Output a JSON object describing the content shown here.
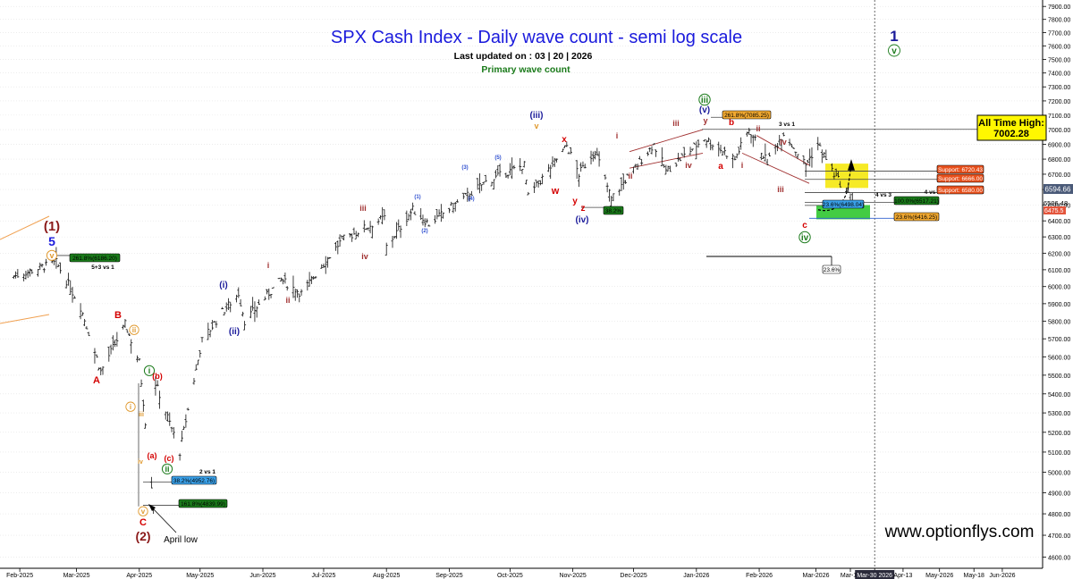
{
  "header": {
    "title": "SPX Cash Index - Daily wave count - semi log scale",
    "updated": "Last updated on : 03 | 20 | 2026",
    "subtitle": "Primary wave count",
    "watermark": "www.optionflys.com"
  },
  "colors": {
    "title": "#1a1adc",
    "green": "#1a7a1a",
    "red": "#d40000",
    "darkred": "#8b1a1a",
    "orange": "#e09a30",
    "blue": "#1a1a9a",
    "yellowZone": "#f5e600",
    "greenZone": "#22c322",
    "supportLabel": "#e8501c"
  },
  "chart_data": {
    "type": "ohlc",
    "scale": "log",
    "ylim": [
      4550,
      7950
    ],
    "y_ticks": [
      4600,
      4700,
      4800,
      4900,
      5000,
      5100,
      5200,
      5300,
      5400,
      5500,
      5600,
      5700,
      5800,
      5900,
      6000,
      6100,
      6200,
      6300,
      6400,
      6500,
      6600,
      6700,
      6800,
      6900,
      7000,
      7100,
      7200,
      7300,
      7400,
      7500,
      7600,
      7700,
      7800,
      7900
    ],
    "x_ticks": [
      "Feb-2025",
      "Mar-2025",
      "Apr-2025",
      "May-2025",
      "Jun-2025",
      "Jul-2025",
      "Aug-2025",
      "Sep-2025",
      "Oct-2025",
      "Nov-2025",
      "Dec-2025",
      "Jan-2026",
      "Feb-2026",
      "Mar-2026",
      "Mar-18",
      "Mar-30 2026",
      "Apr-13",
      "May-2026",
      "May-18",
      "Jun-2026"
    ],
    "price_path": [
      [
        "2025-01-29",
        6060
      ],
      [
        "2025-02-19",
        6144
      ],
      [
        "2025-03-03",
        5880
      ],
      [
        "2025-03-13",
        5520
      ],
      [
        "2025-03-25",
        5780
      ],
      [
        "2025-04-01",
        5570
      ],
      [
        "2025-04-08",
        4835
      ],
      [
        "2025-04-09",
        5456
      ],
      [
        "2025-04-21",
        5100
      ],
      [
        "2025-05-02",
        5690
      ],
      [
        "2025-05-12",
        5850
      ],
      [
        "2025-05-20",
        5960
      ],
      [
        "2025-05-23",
        5800
      ],
      [
        "2025-06-10",
        6040
      ],
      [
        "2025-06-20",
        5960
      ],
      [
        "2025-07-10",
        6280
      ],
      [
        "2025-07-31",
        6420
      ],
      [
        "2025-08-01",
        6240
      ],
      [
        "2025-08-14",
        6470
      ],
      [
        "2025-08-22",
        6380
      ],
      [
        "2025-09-19",
        6650
      ],
      [
        "2025-10-08",
        6760
      ],
      [
        "2025-10-10",
        6550
      ],
      [
        "2025-10-29",
        6890
      ],
      [
        "2025-11-04",
        6700
      ],
      [
        "2025-11-12",
        6860
      ],
      [
        "2025-11-20",
        6540
      ],
      [
        "2025-12-11",
        6900
      ],
      [
        "2025-12-17",
        6720
      ],
      [
        "2026-01-05",
        6940
      ],
      [
        "2026-01-20",
        6800
      ],
      [
        "2026-01-27",
        7002
      ],
      [
        "2026-02-05",
        6780
      ],
      [
        "2026-02-13",
        6980
      ],
      [
        "2026-02-24",
        6760
      ],
      [
        "2026-03-02",
        6900
      ],
      [
        "2026-03-10",
        6700
      ],
      [
        "2026-03-20",
        6506
      ]
    ],
    "last_price": "6594.66",
    "price_tags": [
      "6506.48",
      "6475.5"
    ],
    "wave_labels": [
      {
        "text": "(1)",
        "color": "#8b1a1a"
      },
      {
        "text": "5",
        "color": "#1a1adc"
      },
      {
        "text": "v",
        "color": "#e09a30"
      },
      {
        "text": "A",
        "color": "#d40000"
      },
      {
        "text": "B",
        "color": "#d40000"
      },
      {
        "text": "C",
        "color": "#d40000"
      },
      {
        "text": "(2)",
        "color": "#8b1a1a"
      },
      {
        "text": "i",
        "color": "#1a7a1a"
      },
      {
        "text": "ii",
        "color": "#1a7a1a"
      },
      {
        "text": "(a)",
        "color": "#d40000"
      },
      {
        "text": "(b)",
        "color": "#d40000"
      },
      {
        "text": "(c)",
        "color": "#d40000"
      },
      {
        "text": "(i)",
        "color": "#1a1a9a"
      },
      {
        "text": "(ii)",
        "color": "#1a1a9a"
      },
      {
        "text": "(iii)",
        "color": "#1a1a9a"
      },
      {
        "text": "(iv)",
        "color": "#1a1a9a"
      },
      {
        "text": "(v)",
        "color": "#1a1a9a"
      },
      {
        "text": "iii",
        "color": "#1a7a1a"
      },
      {
        "text": "iv",
        "color": "#1a7a1a"
      },
      {
        "text": "1",
        "color": "#1a1a9a"
      },
      {
        "text": "w",
        "color": "#d40000"
      },
      {
        "text": "x",
        "color": "#d40000"
      },
      {
        "text": "y",
        "color": "#d40000"
      },
      {
        "text": "z",
        "color": "#d40000"
      },
      {
        "text": "a",
        "color": "#d40000"
      },
      {
        "text": "b",
        "color": "#d40000"
      },
      {
        "text": "c",
        "color": "#d40000"
      }
    ],
    "level_boxes": [
      "261.8%(6186.20)",
      "38.2%(4952.76)",
      "161.8%(4839.99)",
      "261.8%(7085.25)",
      "Support: 6720.43",
      "Support: 6666.00",
      "Support: 6580.00",
      "100.0%(6517.21)",
      "23.6%(6498.04)",
      "23.6%(6416.25)",
      "38.2%",
      "23.6%"
    ],
    "small_notes": [
      "5+3 vs 1",
      "2 vs 1",
      "3 vs 1",
      "4 vs 3",
      "4 vs"
    ],
    "ath_label": "All Time High:",
    "ath_value": "7002.28",
    "april_low": "April low"
  }
}
